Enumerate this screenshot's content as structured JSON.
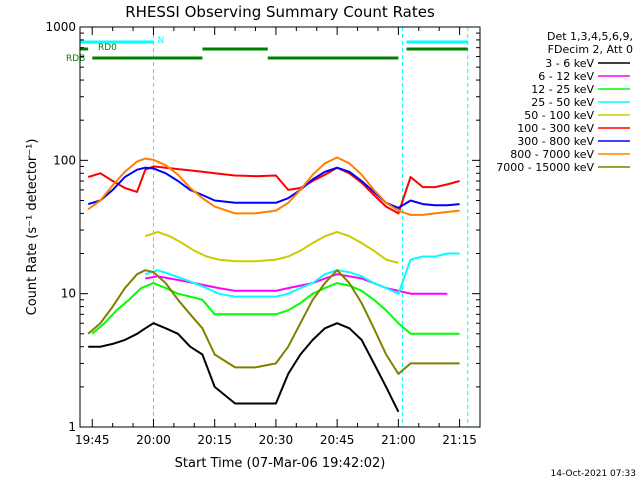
{
  "chart_data": {
    "type": "line",
    "title": "RHESSI Observing Summary Count Rates",
    "xlabel": "Start Time (07-Mar-06 19:42:02)",
    "ylabel": "Count Rate (s⁻¹ detector⁻¹)",
    "x_range": [
      "19:42",
      "21:20"
    ],
    "x_ticks": [
      "19:45",
      "20:00",
      "20:15",
      "20:30",
      "20:45",
      "21:00",
      "21:15"
    ],
    "y_scale": "log",
    "ylim": [
      1,
      1000
    ],
    "y_ticks": [
      "1",
      "10",
      "100",
      "1000"
    ],
    "grid": false,
    "legend_position": "right",
    "legend_header": [
      "Det 1,3,4,5,6,9,",
      "FDecim 2, Att 0"
    ],
    "footer": "14-Oct-2021 07:33",
    "colors": {
      "3-6": "#000000",
      "6-12": "#ff00ff",
      "12-25": "#00ff00",
      "25-50": "#00ffff",
      "50-100": "#cccc00",
      "100-300": "#ff0000",
      "300-800": "#0000ff",
      "800-7000": "#ff8000",
      "7000-15000": "#808000",
      "flag_N": "#00ffff",
      "flag_RD0": "#008000",
      "flag_RDB": "#008000"
    },
    "flags": [
      {
        "label": "N",
        "color": "#00ffff",
        "intervals": [
          [
            "19:42",
            "20:00"
          ],
          [
            "21:02",
            "21:17"
          ]
        ]
      },
      {
        "label": "RD0",
        "color": "#008000",
        "intervals": [
          [
            "19:42",
            "19:44"
          ],
          [
            "20:12",
            "20:28"
          ],
          [
            "21:02",
            "21:17"
          ]
        ]
      },
      {
        "label": "RDB",
        "color": "#008000",
        "intervals": [
          [
            "19:45",
            "20:12"
          ],
          [
            "20:28",
            "21:00"
          ]
        ]
      }
    ],
    "night_markers": [
      "19:42",
      "20:00",
      "21:01",
      "21:17"
    ],
    "series": [
      {
        "name": "3 - 6 keV",
        "color": "#000000",
        "x": [
          "19:44",
          "19:47",
          "19:50",
          "19:53",
          "19:56",
          "19:58",
          "20:00",
          "20:03",
          "20:06",
          "20:09",
          "20:12",
          "20:15",
          "20:20",
          "20:25",
          "20:30",
          "20:33",
          "20:36",
          "20:39",
          "20:42",
          "20:45",
          "20:48",
          "20:51",
          "20:54",
          "20:57",
          "21:00"
        ],
        "y": [
          4,
          4,
          4.2,
          4.5,
          5,
          5.5,
          6,
          5.5,
          5,
          4,
          3.5,
          2,
          1.5,
          1.5,
          1.5,
          2.5,
          3.5,
          4.5,
          5.5,
          6,
          5.5,
          4.5,
          3,
          2,
          1.3
        ]
      },
      {
        "name": "6 - 12 keV",
        "color": "#ff00ff",
        "x": [
          "19:58",
          "20:01",
          "20:04",
          "20:07",
          "20:10",
          "20:13",
          "20:16",
          "20:20",
          "20:25",
          "20:30",
          "20:33",
          "20:36",
          "20:39",
          "20:42",
          "20:45",
          "20:48",
          "20:51",
          "20:54",
          "20:57",
          "21:00",
          "21:03",
          "21:06",
          "21:09",
          "21:12"
        ],
        "y": [
          13,
          13.5,
          13,
          12.5,
          12,
          11.5,
          11,
          10.5,
          10.5,
          10.5,
          11,
          11.5,
          12,
          13,
          14,
          13.5,
          13,
          12,
          11,
          10.5,
          10,
          10,
          10,
          10
        ]
      },
      {
        "name": "12 - 25 keV",
        "color": "#00ff00",
        "x": [
          "19:45",
          "19:48",
          "19:51",
          "19:54",
          "19:57",
          "20:00",
          "20:03",
          "20:06",
          "20:09",
          "20:12",
          "20:15",
          "20:20",
          "20:25",
          "20:30",
          "20:33",
          "20:36",
          "20:39",
          "20:42",
          "20:45",
          "20:48",
          "20:51",
          "20:54",
          "20:57",
          "21:00",
          "21:03",
          "21:06",
          "21:09",
          "21:12",
          "21:15"
        ],
        "y": [
          5,
          6,
          7.5,
          9,
          11,
          12,
          11,
          10,
          9.5,
          9,
          7,
          7,
          7,
          7,
          7.5,
          8.5,
          10,
          11,
          12,
          11.5,
          10.5,
          9,
          7.5,
          6,
          5,
          5,
          5,
          5,
          5
        ]
      },
      {
        "name": "25 - 50 keV",
        "color": "#00ffff",
        "x": [
          "19:58",
          "20:01",
          "20:04",
          "20:07",
          "20:10",
          "20:13",
          "20:16",
          "20:20",
          "20:25",
          "20:30",
          "20:33",
          "20:36",
          "20:39",
          "20:42",
          "20:45",
          "20:48",
          "20:51",
          "20:54",
          "20:57",
          "21:00",
          "21:03",
          "21:06",
          "21:09",
          "21:12",
          "21:15"
        ],
        "y": [
          14,
          15,
          14,
          13,
          12,
          11,
          10,
          9.5,
          9.5,
          9.5,
          10,
          11,
          12,
          14,
          15,
          14.5,
          13.5,
          12,
          11,
          10,
          18,
          19,
          19,
          20,
          20
        ]
      },
      {
        "name": "50 - 100 keV",
        "color": "#cccc00",
        "x": [
          "19:58",
          "20:01",
          "20:04",
          "20:07",
          "20:10",
          "20:13",
          "20:16",
          "20:20",
          "20:25",
          "20:30",
          "20:33",
          "20:36",
          "20:39",
          "20:42",
          "20:45",
          "20:48",
          "20:51",
          "20:54",
          "20:57",
          "21:00"
        ],
        "y": [
          27,
          29,
          27,
          24,
          21,
          19,
          18,
          17.5,
          17.5,
          18,
          19,
          21,
          24,
          27,
          29,
          27,
          24,
          21,
          18,
          17
        ]
      },
      {
        "name": "100 - 300 keV",
        "color": "#ff0000",
        "x": [
          "19:44",
          "19:47",
          "19:50",
          "19:53",
          "19:56",
          "19:58",
          "20:00",
          "20:03",
          "20:06",
          "20:09",
          "20:12",
          "20:15",
          "20:20",
          "20:25",
          "20:30",
          "20:33",
          "20:36",
          "20:39",
          "20:42",
          "20:45",
          "20:48",
          "20:51",
          "20:54",
          "20:57",
          "21:00",
          "21:03",
          "21:06",
          "21:09",
          "21:12",
          "21:15"
        ],
        "y": [
          75,
          80,
          70,
          62,
          58,
          85,
          90,
          88,
          86,
          84,
          82,
          80,
          77,
          76,
          77,
          60,
          62,
          70,
          78,
          88,
          80,
          68,
          55,
          45,
          40,
          75,
          63,
          63,
          66,
          70
        ]
      },
      {
        "name": "300 - 800 keV",
        "color": "#0000ff",
        "x": [
          "19:44",
          "19:47",
          "19:50",
          "19:53",
          "19:56",
          "19:58",
          "20:00",
          "20:03",
          "20:06",
          "20:09",
          "20:12",
          "20:15",
          "20:20",
          "20:25",
          "20:30",
          "20:33",
          "20:36",
          "20:39",
          "20:42",
          "20:45",
          "20:48",
          "20:51",
          "20:54",
          "20:57",
          "21:00",
          "21:03",
          "21:06",
          "21:09",
          "21:12",
          "21:15"
        ],
        "y": [
          47,
          50,
          60,
          75,
          85,
          88,
          87,
          80,
          70,
          60,
          55,
          50,
          48,
          48,
          48,
          52,
          60,
          72,
          82,
          88,
          82,
          70,
          58,
          48,
          44,
          50,
          47,
          46,
          46,
          47
        ]
      },
      {
        "name": "800 - 7000 keV",
        "color": "#ff8000",
        "x": [
          "19:44",
          "19:47",
          "19:50",
          "19:53",
          "19:56",
          "19:58",
          "20:00",
          "20:03",
          "20:06",
          "20:09",
          "20:12",
          "20:15",
          "20:20",
          "20:25",
          "20:30",
          "20:33",
          "20:36",
          "20:39",
          "20:42",
          "20:45",
          "20:48",
          "20:51",
          "20:54",
          "20:57",
          "21:00",
          "21:03",
          "21:06",
          "21:09",
          "21:12",
          "21:15"
        ],
        "y": [
          43,
          50,
          65,
          82,
          98,
          103,
          101,
          92,
          78,
          62,
          52,
          45,
          40,
          40,
          42,
          48,
          60,
          78,
          95,
          105,
          95,
          78,
          60,
          48,
          42,
          39,
          39,
          40,
          41,
          42
        ]
      },
      {
        "name": "7000 - 15000 keV",
        "color": "#808000",
        "x": [
          "19:44",
          "19:47",
          "19:50",
          "19:53",
          "19:56",
          "19:58",
          "20:00",
          "20:03",
          "20:06",
          "20:09",
          "20:12",
          "20:15",
          "20:20",
          "20:25",
          "20:30",
          "20:33",
          "20:36",
          "20:39",
          "20:42",
          "20:45",
          "20:48",
          "20:51",
          "20:54",
          "20:57",
          "21:00",
          "21:03",
          "21:06",
          "21:09",
          "21:12",
          "21:15"
        ],
        "y": [
          5,
          6,
          8,
          11,
          14,
          15,
          14.5,
          12,
          9,
          7,
          5.5,
          3.5,
          2.8,
          2.8,
          3,
          4,
          6,
          9,
          12,
          15,
          12,
          8.5,
          5.5,
          3.5,
          2.5,
          3,
          3,
          3,
          3,
          3
        ]
      }
    ]
  }
}
